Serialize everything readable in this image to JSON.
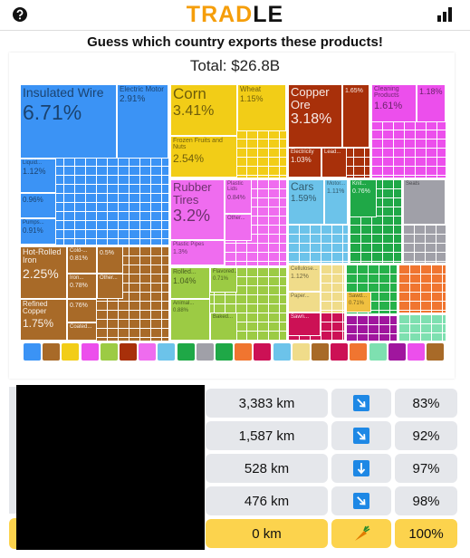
{
  "header": {
    "title_a": "TRAD",
    "title_b": "LE"
  },
  "question": "Guess which country exports these products!",
  "total": "Total: $26.8B",
  "tiles": [
    {
      "label": "Insulated Wire",
      "value": "6.71%"
    },
    {
      "label": "Electric Motor",
      "value": "2.91%"
    },
    {
      "label": "Liquid...",
      "value": "1.12%"
    },
    {
      "value": "0.96%"
    },
    {
      "label": "Pumps...",
      "value": "0.91%"
    },
    {
      "label": "Corn",
      "value": "3.41%"
    },
    {
      "label": "Wheat",
      "value": "1.15%"
    },
    {
      "label": "Frozen Fruits and Nuts",
      "value": "2.54%"
    },
    {
      "label": "Copper Ore",
      "value": "3.18%"
    },
    {
      "value": "1.65%"
    },
    {
      "label": "Electricity",
      "value": "1.03%"
    },
    {
      "label": "Lead..."
    },
    {
      "label": "Cleaning Products",
      "value": "1.61%"
    },
    {
      "value": "1.18%"
    },
    {
      "label": "Rubber Tires",
      "value": "3.2%"
    },
    {
      "label": "Plastic Lids",
      "value": "0.84%"
    },
    {
      "label": "Other..."
    },
    {
      "label": "Plastic Pipes",
      "value": "1.3%"
    },
    {
      "label": "Cars",
      "value": "1.59%"
    },
    {
      "label": "Motor...",
      "value": "1.11%"
    },
    {
      "label": "Knit...",
      "value": "0.76%"
    },
    {
      "label": "Seats"
    },
    {
      "label": "Hot-Rolled Iron",
      "value": "2.25%"
    },
    {
      "label": "Cold-...",
      "value": "0.81%"
    },
    {
      "value": "0.5%"
    },
    {
      "label": "Iron...",
      "value": "0.78%"
    },
    {
      "label": "Other..."
    },
    {
      "label": "Refined Copper",
      "value": "1.75%"
    },
    {
      "value": "0.76%"
    },
    {
      "label": "Coated..."
    },
    {
      "label": "Rolled...",
      "value": "1.04%"
    },
    {
      "label": "Flavored...",
      "value": "0.71%"
    },
    {
      "label": "Animal...",
      "value": "0.88%"
    },
    {
      "label": "Baked..."
    },
    {
      "label": "Cellulose...",
      "value": "1.12%"
    },
    {
      "label": "Paper..."
    },
    {
      "label": "Sawn..."
    },
    {
      "label": "Sawd...",
      "value": "0.71%"
    }
  ],
  "guesses": [
    {
      "distance": "3,383 km",
      "percent": "83%"
    },
    {
      "distance": "1,587 km",
      "percent": "92%"
    },
    {
      "distance": "528 km",
      "percent": "97%"
    },
    {
      "distance": "476 km",
      "percent": "98%"
    },
    {
      "distance": "0 km",
      "percent": "100%"
    }
  ]
}
